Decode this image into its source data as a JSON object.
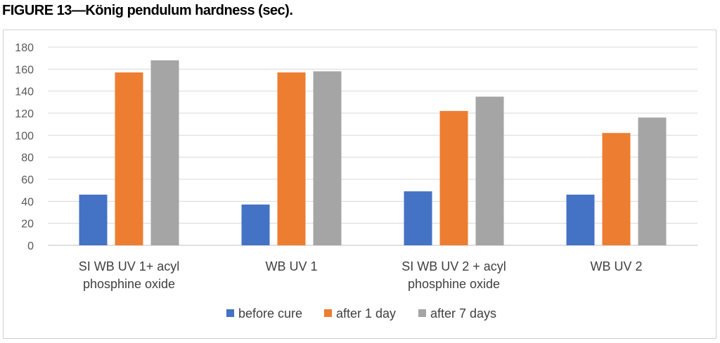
{
  "figure_title": "FIGURE 13—König pendulum hardness (sec).",
  "chart_data": {
    "type": "bar",
    "title": "",
    "xlabel": "",
    "ylabel": "",
    "categories": [
      [
        "SI WB UV 1+ acyl",
        "phosphine oxide"
      ],
      [
        "WB UV 1"
      ],
      [
        "SI WB UV 2 + acyl",
        "phosphine oxide"
      ],
      [
        "WB UV 2"
      ]
    ],
    "series": [
      {
        "name": "before cure",
        "color": "#4472c4",
        "values": [
          46,
          37,
          49,
          46
        ]
      },
      {
        "name": "after 1 day",
        "color": "#ed7d31",
        "values": [
          157,
          157,
          122,
          102
        ]
      },
      {
        "name": "after 7 days",
        "color": "#a5a5a5",
        "values": [
          168,
          158,
          135,
          116
        ]
      }
    ],
    "ylim": [
      0,
      180
    ],
    "yticks": [
      0,
      20,
      40,
      60,
      80,
      100,
      120,
      140,
      160,
      180
    ],
    "grid": true,
    "legend_position": "bottom"
  }
}
